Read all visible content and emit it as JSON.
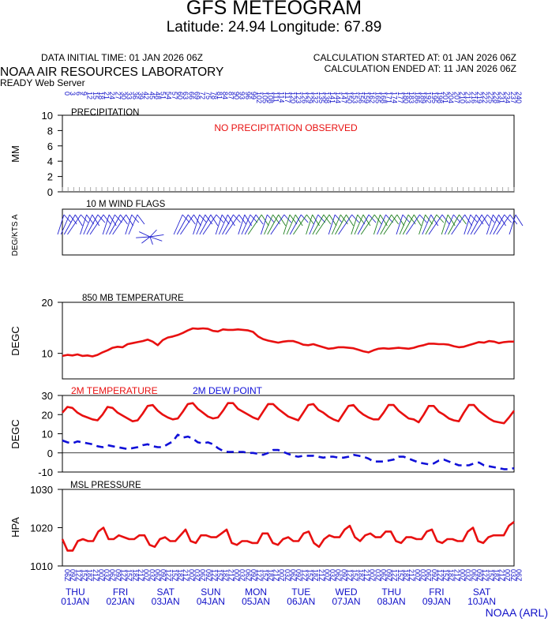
{
  "header": {
    "title": "GFS METEOGRAM",
    "subtitle": "Latitude: 24.94 Longitude:  67.89",
    "init_time": "DATA INITIAL TIME: 01 JAN 2026 06Z",
    "calc_started": "CALCULATION STARTED AT: 01 JAN 2026 06Z",
    "calc_ended": "CALCULATION ENDED AT: 11 JAN 2026 06Z",
    "org": "NOAA AIR RESOURCES LABORATORY",
    "server": "READY Web Server",
    "credit": "NOAA (ARL)"
  },
  "colors": {
    "temperature": "#e81010",
    "dewpoint": "#1010d8",
    "wind_blue": "#2020d0",
    "wind_green": "#208020",
    "label_blue": "#1010c8",
    "message_red": "#e81010"
  },
  "chart_data": [
    {
      "type": "line",
      "title": "PRECIPITATION",
      "ylabel": "MM",
      "ylim": [
        0,
        10
      ],
      "yticks": [
        0,
        2,
        4,
        6,
        8,
        10
      ],
      "message": "NO PRECIPITATION OBSERVED",
      "values": []
    },
    {
      "type": "wind",
      "title": "10 M  WIND FLAGS",
      "ylabel": "DEG/KTS  A",
      "note": "direction/speed labels printed rotated along the axis; barbs drawn per 6 hours"
    },
    {
      "type": "line",
      "title": "850 MB  TEMPERATURE",
      "ylabel": "DEGC",
      "ylim": [
        5,
        20
      ],
      "yticks": [
        10,
        20
      ],
      "series": [
        {
          "values": [
            9.5,
            9.7,
            9.6,
            9.8,
            9.5,
            9.6,
            9.4,
            9.7,
            10.2,
            10.6,
            11.1,
            11.3,
            11.2,
            11.8,
            12.0,
            12.2,
            12.4,
            12.7,
            12.3,
            11.6,
            12.6,
            13.1,
            13.3,
            13.6,
            14.0,
            14.5,
            14.9,
            14.8,
            14.9,
            14.8,
            14.4,
            14.3,
            14.7,
            14.6,
            14.6,
            14.7,
            14.6,
            14.5,
            14.2,
            13.3,
            12.8,
            12.5,
            12.3,
            12.1,
            12.3,
            12.4,
            12.4,
            12.1,
            11.7,
            11.6,
            11.8,
            11.5,
            11.2,
            10.9,
            11.0,
            11.2,
            11.2,
            11.1,
            11.0,
            10.7,
            10.4,
            10.2,
            10.6,
            10.9,
            11.0,
            10.9,
            11.0,
            11.1,
            11.0,
            10.9,
            11.1,
            11.4,
            11.6,
            11.9,
            11.9,
            11.8,
            11.8,
            11.7,
            11.4,
            11.2,
            11.3,
            11.6,
            11.9,
            12.2,
            12.1,
            12.4,
            12.3,
            12.0,
            12.2,
            12.3,
            12.3
          ]
        }
      ]
    },
    {
      "type": "line",
      "title": "",
      "ylabel": "DEGC",
      "ylim": [
        -10,
        30
      ],
      "yticks": [
        -10,
        0,
        10,
        20,
        30
      ],
      "series": [
        {
          "name": "2M TEMPERATURE",
          "values": [
            21,
            24,
            23.5,
            21,
            19.5,
            18.5,
            17.5,
            17,
            20,
            24,
            23.5,
            21,
            19.5,
            18,
            16.5,
            17,
            20.5,
            24.5,
            25,
            22,
            20,
            18.5,
            17.5,
            18,
            21.5,
            25.5,
            26,
            23,
            21,
            19,
            18,
            18.5,
            22,
            26,
            26,
            23,
            21.5,
            20,
            18.5,
            17.5,
            21.5,
            25.5,
            25.5,
            23,
            21,
            19,
            18,
            17,
            21,
            25,
            25.5,
            22.5,
            21,
            19,
            17.5,
            16.5,
            20.5,
            24.5,
            25,
            22,
            20,
            18.5,
            17.5,
            17.5,
            21,
            25,
            25,
            22,
            20,
            18,
            17.5,
            16,
            20,
            24.5,
            24.5,
            21.5,
            20,
            18,
            17,
            16.5,
            21,
            25,
            25,
            22,
            20,
            18,
            16.5,
            16,
            15.5,
            18.5,
            22
          ]
        },
        {
          "name": "2M  DEW POINT",
          "values": [
            6.5,
            5.5,
            5,
            6,
            5.5,
            5,
            4.5,
            3.5,
            3,
            4,
            3.5,
            3,
            2.5,
            2,
            2.5,
            3,
            4,
            4.5,
            3.5,
            3,
            3,
            4.5,
            6,
            9.5,
            8,
            8.5,
            7.5,
            5.5,
            5,
            5.5,
            4.5,
            2.5,
            1,
            0.5,
            0.5,
            0.5,
            0.5,
            0,
            0,
            -0.5,
            -1,
            0,
            1.5,
            1.5,
            0.5,
            -0.5,
            -1.5,
            -2,
            -1.5,
            -1.5,
            -1.5,
            -2,
            -2.5,
            -2,
            -2,
            -2.5,
            -2.5,
            -2,
            -1,
            -1.5,
            -2,
            -3,
            -4.5,
            -4.5,
            -4.5,
            -4,
            -3.5,
            -2,
            -2,
            -3,
            -4,
            -5,
            -5.5,
            -6,
            -5.5,
            -4,
            -3.5,
            -4.5,
            -5.5,
            -6.5,
            -6.5,
            -6.5,
            -5.5,
            -5,
            -6.5,
            -7,
            -7.5,
            -8,
            -8.5,
            -8.5,
            -8
          ]
        }
      ]
    },
    {
      "type": "line",
      "title": "MSL PRESSURE",
      "ylabel": "HPA",
      "ylim": [
        1010,
        1030
      ],
      "yticks": [
        1010,
        1020,
        1030
      ],
      "series": [
        {
          "values": [
            1017,
            1014,
            1014,
            1016.5,
            1017,
            1016.5,
            1016.5,
            1019,
            1020,
            1017,
            1017,
            1018,
            1017.5,
            1017,
            1017,
            1018,
            1018,
            1015.5,
            1015,
            1017,
            1017.5,
            1016.5,
            1016.5,
            1018,
            1019.5,
            1016.5,
            1016,
            1018,
            1018,
            1017.5,
            1017.5,
            1018.5,
            1019.5,
            1016,
            1015.5,
            1016.5,
            1016.5,
            1016,
            1016,
            1018.5,
            1018.5,
            1016,
            1015.5,
            1017,
            1017.5,
            1016.5,
            1016.5,
            1018.5,
            1019,
            1016,
            1015,
            1017,
            1018,
            1017.5,
            1017.5,
            1019.5,
            1020.5,
            1017.5,
            1016.5,
            1018,
            1018.5,
            1017.5,
            1017.5,
            1019,
            1019,
            1016.5,
            1016,
            1017.5,
            1017.5,
            1017,
            1017,
            1019,
            1019.5,
            1016.5,
            1016,
            1017,
            1017,
            1016.5,
            1016.5,
            1019,
            1020,
            1016.5,
            1016,
            1017.5,
            1018,
            1018,
            1018,
            1020.5,
            1021.5
          ]
        }
      ]
    }
  ],
  "time_axis": {
    "days": [
      {
        "dow": "THU",
        "date": "01JAN"
      },
      {
        "dow": "FRI",
        "date": "02JAN"
      },
      {
        "dow": "SAT",
        "date": "03JAN"
      },
      {
        "dow": "SUN",
        "date": "04JAN"
      },
      {
        "dow": "MON",
        "date": "05JAN"
      },
      {
        "dow": "TUE",
        "date": "06JAN"
      },
      {
        "dow": "WED",
        "date": "07JAN"
      },
      {
        "dow": "THU",
        "date": "08JAN"
      },
      {
        "dow": "FRI",
        "date": "09JAN"
      },
      {
        "dow": "SAT",
        "date": "10JAN"
      }
    ],
    "hour_cycle": [
      "06Z",
      "09Z",
      "12Z",
      "15Z",
      "18Z",
      "21Z",
      "00Z",
      "03Z"
    ],
    "forecast_hour_step": 3,
    "forecast_hour_max": 240
  }
}
